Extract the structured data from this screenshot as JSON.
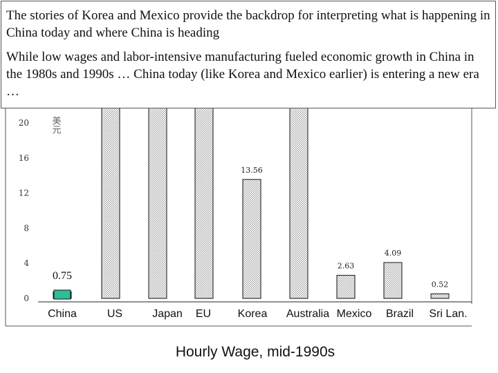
{
  "textbox": {
    "line1": "The stories of Korea and Mexico provide the backdrop for interpreting what is happening in China today and where China is heading",
    "line2": "While low wages and labor-intensive manufacturing fueled economic growth in China in the 1980s and 1990s … China today (like Korea and Mexico earlier) is entering a new era …"
  },
  "caption": "Hourly Wage, mid-1990s",
  "chart_data": {
    "type": "bar",
    "title": "Hourly Wage, mid-1990s",
    "ylabel": "美元",
    "categories": [
      "China",
      "US",
      "Japan",
      "EU",
      "Korea",
      "Australia",
      "Mexico",
      "Brazil",
      "Sri Lan."
    ],
    "values": [
      0.75,
      null,
      null,
      null,
      13.56,
      null,
      2.63,
      4.09,
      0.52
    ],
    "labels": [
      "0.75",
      "",
      "",
      "",
      "13.56",
      "",
      "2.63",
      "4.09",
      "0.52"
    ],
    "yticks": [
      0,
      4,
      8,
      12,
      16,
      20
    ],
    "ylim": [
      0,
      20
    ],
    "highlight_color": "#2ebd96",
    "hatch_color": "#9a9a9a"
  }
}
